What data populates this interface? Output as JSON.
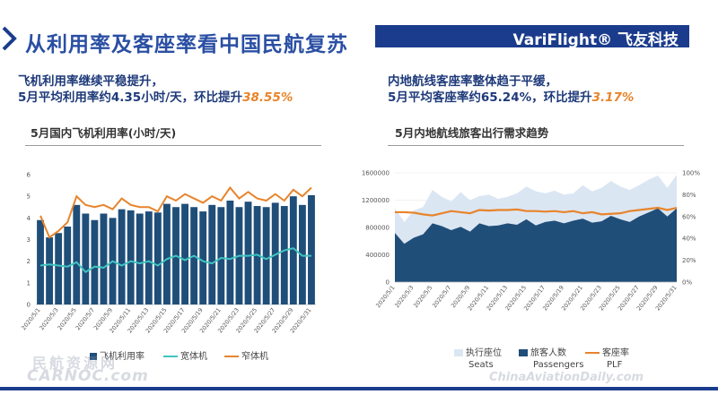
{
  "header": {
    "title": "从利用率及客座率看中国民航复苏",
    "brand": "VariFlight® 飞友科技"
  },
  "left_panel": {
    "headline_line1": "飞机利用率继续平稳提升，",
    "headline_line2_prefix": "5月平均利用率约4.35小时/天，环比提升",
    "headline_line2_pct": "38.55%",
    "subtitle": "5月国内飞机利用率(小时/天)"
  },
  "right_panel": {
    "headline_line1": "内地航线客座率整体趋于平缓，",
    "headline_line2_prefix": "5月平均客座率约65.24%，环比提升",
    "headline_line2_pct": "3.17%",
    "subtitle": "5月内地航线旅客出行需求趋势"
  },
  "watermarks": {
    "left": "民航资源网",
    "left_en": "CARNOC.com",
    "right": "ChinaAviationDaily.com"
  },
  "colors": {
    "title_blue": "#2a4fa3",
    "brand_bar": "#1b3c8c",
    "bar_navy": "#1f4e79",
    "teal": "#40c4c0",
    "orange": "#e8842b",
    "seats_light": "#dbe6f3",
    "passengers_navy": "#1f4e79"
  },
  "chart_data": [
    {
      "type": "bar",
      "categories": [
        "2020/5/1",
        "2020/5/2",
        "2020/5/3",
        "2020/5/4",
        "2020/5/5",
        "2020/5/6",
        "2020/5/7",
        "2020/5/8",
        "2020/5/9",
        "2020/5/10",
        "2020/5/11",
        "2020/5/12",
        "2020/5/13",
        "2020/5/14",
        "2020/5/15",
        "2020/5/16",
        "2020/5/17",
        "2020/5/18",
        "2020/5/19",
        "2020/5/20",
        "2020/5/21",
        "2020/5/22",
        "2020/5/23",
        "2020/5/24",
        "2020/5/25",
        "2020/5/26",
        "2020/5/27",
        "2020/5/28",
        "2020/5/29",
        "2020/5/30",
        "2020/5/31"
      ],
      "tick_labels": [
        "2020/5/1",
        "2020/5/3",
        "2020/5/5",
        "2020/5/7",
        "2020/5/9",
        "2020/5/11",
        "2020/5/13",
        "2020/5/15",
        "2020/5/17",
        "2020/5/19",
        "2020/5/21",
        "2020/5/23",
        "2020/5/25",
        "2020/5/27",
        "2020/5/29",
        "2020/5/31"
      ],
      "ylim": [
        0,
        6
      ],
      "yticks": [
        0,
        1,
        2,
        3,
        4,
        5,
        6
      ],
      "series": [
        {
          "name": "飞机利用率",
          "kind": "bar",
          "values": [
            3.9,
            3.1,
            3.3,
            3.6,
            4.6,
            4.2,
            3.9,
            4.2,
            4.0,
            4.4,
            4.35,
            4.2,
            4.3,
            4.25,
            4.65,
            4.5,
            4.65,
            4.5,
            4.3,
            4.6,
            4.5,
            4.8,
            4.5,
            4.75,
            4.55,
            4.5,
            4.7,
            4.55,
            5.0,
            4.6,
            5.05
          ]
        },
        {
          "name": "宽体机",
          "kind": "line",
          "values": [
            1.8,
            1.85,
            1.8,
            1.75,
            1.95,
            1.5,
            1.75,
            1.7,
            2.0,
            1.8,
            2.0,
            1.9,
            2.0,
            1.8,
            2.1,
            2.25,
            2.05,
            2.25,
            2.0,
            1.9,
            2.15,
            2.1,
            2.25,
            2.25,
            2.3,
            2.1,
            2.3,
            2.5,
            2.6,
            2.25,
            2.25
          ]
        },
        {
          "name": "窄体机",
          "kind": "line",
          "values": [
            4.1,
            3.1,
            3.4,
            3.8,
            5.0,
            4.6,
            4.5,
            4.6,
            4.4,
            4.9,
            4.6,
            4.5,
            4.5,
            4.3,
            5.0,
            4.8,
            5.1,
            4.9,
            4.7,
            5.0,
            4.8,
            5.4,
            4.9,
            5.2,
            4.9,
            4.8,
            5.1,
            4.8,
            5.3,
            5.0,
            5.4
          ]
        }
      ]
    },
    {
      "type": "area",
      "categories": [
        "2020/5/1",
        "2020/5/2",
        "2020/5/3",
        "2020/5/4",
        "2020/5/5",
        "2020/5/6",
        "2020/5/7",
        "2020/5/8",
        "2020/5/9",
        "2020/5/10",
        "2020/5/11",
        "2020/5/12",
        "2020/5/13",
        "2020/5/14",
        "2020/5/15",
        "2020/5/16",
        "2020/5/17",
        "2020/5/18",
        "2020/5/19",
        "2020/5/20",
        "2020/5/21",
        "2020/5/22",
        "2020/5/23",
        "2020/5/24",
        "2020/5/25",
        "2020/5/26",
        "2020/5/27",
        "2020/5/28",
        "2020/5/29",
        "2020/5/30",
        "2020/5/31"
      ],
      "tick_labels": [
        "2020/5/1",
        "2020/5/3",
        "2020/5/5",
        "2020/5/7",
        "2020/5/9",
        "2020/5/11",
        "2020/5/13",
        "2020/5/15",
        "2020/5/17",
        "2020/5/19",
        "2020/5/21",
        "2020/5/23",
        "2020/5/25",
        "2020/5/27",
        "2020/5/29",
        "2020/5/31"
      ],
      "ylim_left": [
        0,
        1600000
      ],
      "yticks_left": [
        "0",
        "400000",
        "800000",
        "1200000",
        "1600000"
      ],
      "ylim_right": [
        0,
        100
      ],
      "yticks_right": [
        "0%",
        "20%",
        "40%",
        "60%",
        "80%",
        "100%"
      ],
      "series": [
        {
          "name": "执行座位",
          "kind": "area",
          "axis": "left",
          "values": [
            1080000,
            880000,
            1050000,
            1100000,
            1350000,
            1250000,
            1180000,
            1320000,
            1200000,
            1260000,
            1280000,
            1220000,
            1250000,
            1300000,
            1400000,
            1330000,
            1300000,
            1340000,
            1280000,
            1300000,
            1420000,
            1330000,
            1380000,
            1480000,
            1400000,
            1350000,
            1420000,
            1500000,
            1560000,
            1380000,
            1570000
          ]
        },
        {
          "name": "旅客人数",
          "kind": "area",
          "axis": "left",
          "values": [
            720000,
            560000,
            650000,
            700000,
            860000,
            820000,
            760000,
            810000,
            740000,
            860000,
            820000,
            830000,
            860000,
            840000,
            920000,
            830000,
            880000,
            900000,
            860000,
            900000,
            930000,
            870000,
            890000,
            970000,
            920000,
            880000,
            960000,
            1020000,
            1080000,
            960000,
            1080000
          ]
        },
        {
          "name": "客座率",
          "kind": "line",
          "axis": "right",
          "values": [
            64,
            64,
            63.5,
            62,
            61,
            63,
            65,
            64,
            63,
            66,
            65.5,
            66,
            66,
            66.5,
            65,
            65,
            64.5,
            65,
            64,
            65,
            63,
            64,
            62,
            62.5,
            63,
            65,
            66,
            67,
            68,
            66,
            68
          ]
        }
      ],
      "legend_en": [
        "Seats",
        "Passengers",
        "PLF"
      ]
    }
  ]
}
